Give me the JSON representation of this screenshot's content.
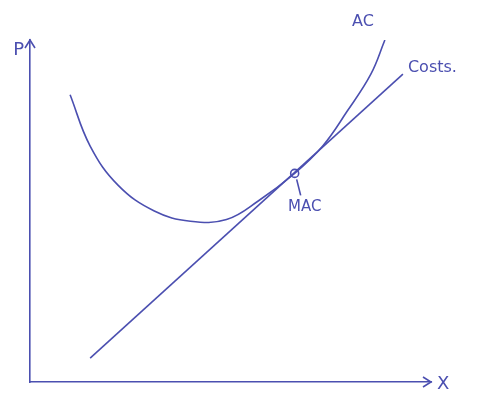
{
  "chart_data": {
    "type": "line",
    "x_label": "X",
    "y_label": "P",
    "xlim": [
      0,
      10
    ],
    "ylim": [
      0,
      10
    ],
    "tick_labels": false,
    "grid": false,
    "series": [
      {
        "name": "AC",
        "color": "#4b4fb0",
        "x": [
          1.0,
          1.5,
          2.2,
          3.1,
          4.0,
          4.9,
          5.7,
          6.6,
          7.3,
          7.9,
          8.5,
          8.85
        ],
        "values": [
          8.4,
          6.9,
          5.75,
          5.0,
          4.7,
          4.75,
          5.3,
          6.1,
          6.9,
          7.9,
          9.0,
          10.0
        ]
      },
      {
        "name": "Costs.",
        "color": "#4b4fb0",
        "x": [
          1.5,
          9.3
        ],
        "values": [
          0.7,
          9.0
        ]
      }
    ],
    "annotations": [
      {
        "text": "MAC",
        "x": 6.6,
        "y": 6.1,
        "marker": "circle",
        "color": "#4b4fb0"
      }
    ]
  }
}
